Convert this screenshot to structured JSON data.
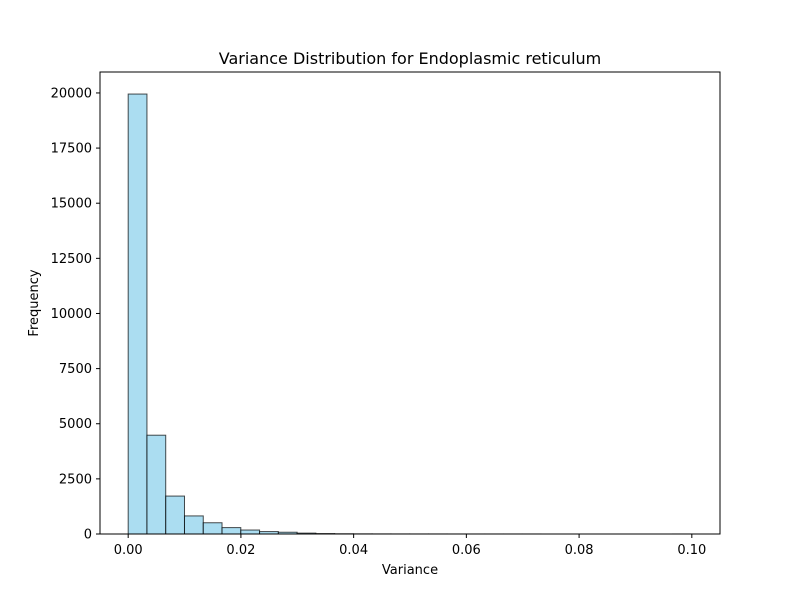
{
  "chart_data": {
    "type": "bar",
    "title": "Variance Distribution for Endoplasmic reticulum",
    "xlabel": "Variance",
    "ylabel": "Frequency",
    "xlim": [
      -0.005,
      0.105
    ],
    "ylim": [
      0,
      20950
    ],
    "bins": {
      "start": 0.0,
      "width": 0.00333,
      "counts": [
        19950,
        4480,
        1720,
        820,
        510,
        290,
        180,
        110,
        80,
        40,
        20,
        10,
        6,
        4,
        3,
        2,
        2,
        1,
        1,
        1,
        1,
        1,
        0,
        0,
        0,
        0,
        0,
        0,
        0,
        1
      ]
    },
    "x_ticks": [
      {
        "value": 0.0,
        "label": "0.00"
      },
      {
        "value": 0.02,
        "label": "0.02"
      },
      {
        "value": 0.04,
        "label": "0.04"
      },
      {
        "value": 0.06,
        "label": "0.06"
      },
      {
        "value": 0.08,
        "label": "0.08"
      },
      {
        "value": 0.1,
        "label": "0.10"
      }
    ],
    "y_ticks": [
      {
        "value": 0,
        "label": "0"
      },
      {
        "value": 2500,
        "label": "2500"
      },
      {
        "value": 5000,
        "label": "5000"
      },
      {
        "value": 7500,
        "label": "7500"
      },
      {
        "value": 10000,
        "label": "10000"
      },
      {
        "value": 12500,
        "label": "12500"
      },
      {
        "value": 15000,
        "label": "15000"
      },
      {
        "value": 17500,
        "label": "17500"
      },
      {
        "value": 20000,
        "label": "20000"
      }
    ],
    "grid": false,
    "colors": {
      "bar_fill": "#87ceeb",
      "bar_edge": "#000000",
      "axes": "#000000"
    }
  }
}
